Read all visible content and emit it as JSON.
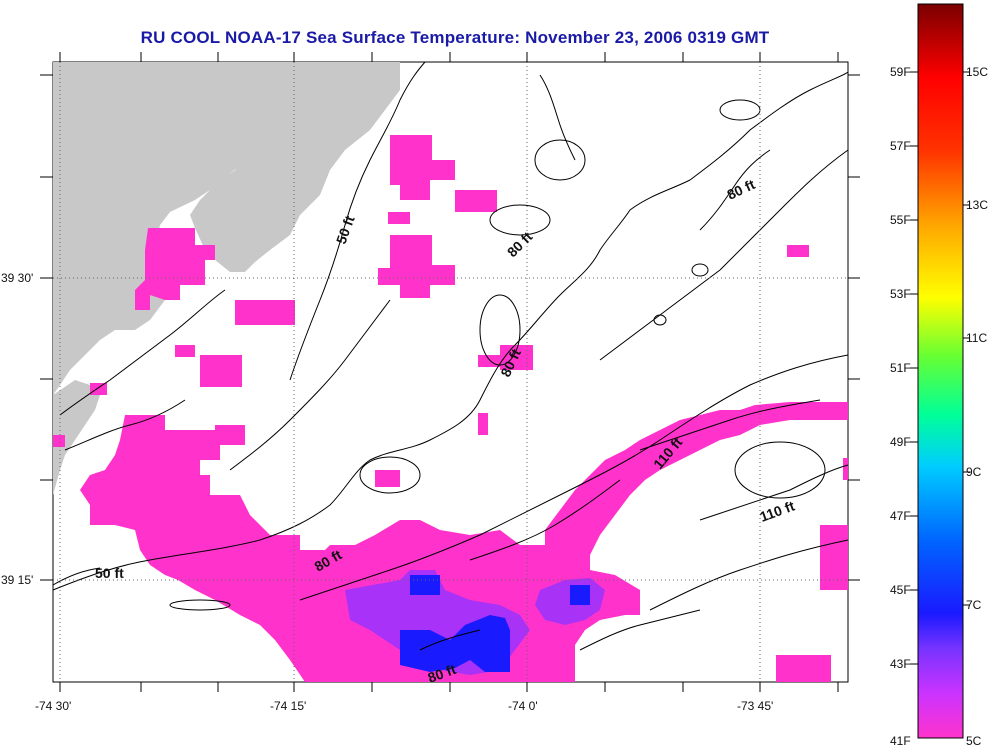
{
  "title": "RU COOL  NOAA-17  Sea Surface Temperature:  November 23, 2006 0319 GMT",
  "axes": {
    "longitude_ticks": [
      "-74 30'",
      "-74 15'",
      "-74 0'",
      "-73 45'"
    ],
    "latitude_ticks": [
      "39 30'",
      "39 15'"
    ]
  },
  "contour_labels": [
    "50 ft",
    "50 ft",
    "80 ft",
    "80 ft",
    "80 ft",
    "80 ft",
    "80 ft",
    "110 ft",
    "110 ft"
  ],
  "colorbar": {
    "fahrenheit_labels": [
      "59F",
      "57F",
      "55F",
      "53F",
      "51F",
      "49F",
      "47F",
      "45F",
      "43F",
      "41F"
    ],
    "celsius_labels": [
      "15C",
      "13C",
      "11C",
      "9C",
      "7C",
      "5C"
    ],
    "colors": {
      "land": "#c8c8c8",
      "sst_pink": "#ff33cc",
      "sst_purple": "#9933ff",
      "sst_blue": "#1a1aff",
      "contour": "#000000",
      "title": "#1a1aa6"
    }
  }
}
